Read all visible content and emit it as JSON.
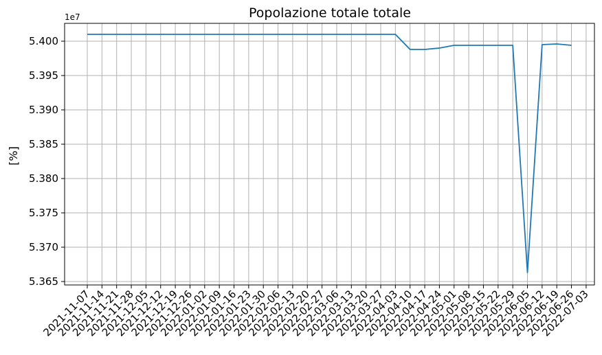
{
  "chart_data": {
    "type": "line",
    "title": "Popolazione totale totale",
    "xlabel": "",
    "ylabel": "[%]",
    "y_offset_label": "1e7",
    "y_multiplier": 10000000,
    "ylim": [
      5.3645,
      5.4026
    ],
    "yticks": [
      5.365,
      5.37,
      5.375,
      5.38,
      5.385,
      5.39,
      5.395,
      5.4
    ],
    "ytick_labels": [
      "5.365",
      "5.370",
      "5.375",
      "5.380",
      "5.385",
      "5.390",
      "5.395",
      "5.400"
    ],
    "grid": true,
    "x_tick_labels": [
      "2021-11-07",
      "2021-11-14",
      "2021-11-21",
      "2021-11-28",
      "2021-12-05",
      "2021-12-12",
      "2021-12-19",
      "2021-12-26",
      "2022-01-02",
      "2022-01-09",
      "2022-01-16",
      "2022-01-23",
      "2022-01-30",
      "2022-02-06",
      "2022-02-13",
      "2022-02-20",
      "2022-02-27",
      "2022-03-06",
      "2022-03-13",
      "2022-03-20",
      "2022-03-27",
      "2022-04-03",
      "2022-04-10",
      "2022-04-17",
      "2022-04-24",
      "2022-05-01",
      "2022-05-08",
      "2022-05-15",
      "2022-05-22",
      "2022-05-29",
      "2022-06-05",
      "2022-06-12",
      "2022-06-19",
      "2022-06-26",
      "2022-07-03"
    ],
    "series": [
      {
        "color": "#1f77b4",
        "x": [
          "2021-11-07",
          "2021-11-14",
          "2021-11-21",
          "2021-11-28",
          "2021-12-05",
          "2021-12-12",
          "2021-12-19",
          "2021-12-26",
          "2022-01-02",
          "2022-01-09",
          "2022-01-16",
          "2022-01-23",
          "2022-01-30",
          "2022-02-06",
          "2022-02-13",
          "2022-02-20",
          "2022-02-27",
          "2022-03-06",
          "2022-03-13",
          "2022-03-20",
          "2022-03-27",
          "2022-04-03",
          "2022-04-10",
          "2022-04-17",
          "2022-04-24",
          "2022-05-01",
          "2022-05-08",
          "2022-05-15",
          "2022-05-22",
          "2022-05-29",
          "2022-06-05",
          "2022-06-12",
          "2022-06-19",
          "2022-06-26"
        ],
        "values": [
          54010000,
          54010000,
          54010000,
          54010000,
          54010000,
          54010000,
          54010000,
          54010000,
          54010000,
          54010000,
          54010000,
          54010000,
          54010000,
          54010000,
          54010000,
          54010000,
          54010000,
          54010000,
          54010000,
          54010000,
          54010000,
          54010000,
          53988000,
          53988000,
          53990000,
          53994000,
          53994000,
          53994000,
          53994000,
          53994000,
          53663000,
          53995000,
          53996000,
          53994000
        ]
      }
    ]
  }
}
